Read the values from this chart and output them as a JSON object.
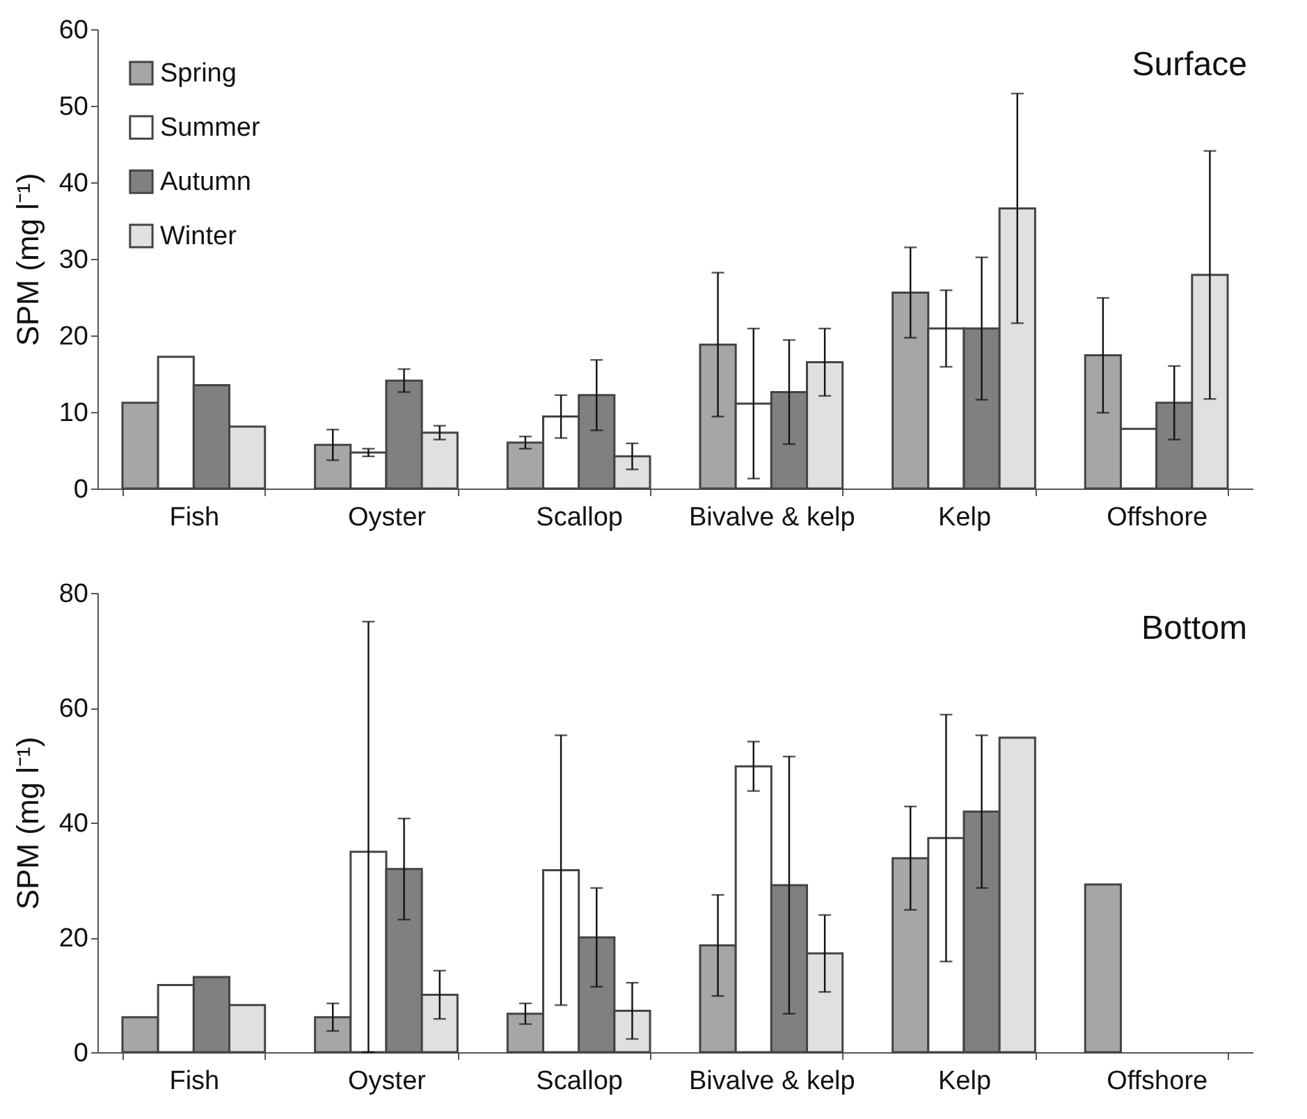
{
  "chart_data": [
    {
      "type": "bar",
      "title": "Surface",
      "ylabel": "SPM (mg l⁻¹)",
      "categories": [
        "Fish",
        "Oyster",
        "Scallop",
        "Bivalve & kelp",
        "Kelp",
        "Offshore"
      ],
      "ylim": [
        0,
        60
      ],
      "yticks": [
        0,
        10,
        20,
        30,
        40,
        50,
        60
      ],
      "grid": false,
      "legend": "top left",
      "series": [
        {
          "name": "Spring",
          "color": "#a6a6a6",
          "values": [
            11.2,
            5.7,
            6.0,
            18.8,
            25.6,
            17.4
          ],
          "errors": [
            null,
            2.0,
            0.8,
            9.4,
            5.9,
            7.5
          ]
        },
        {
          "name": "Summer",
          "color": "#ffffff",
          "values": [
            17.2,
            4.7,
            9.4,
            11.1,
            20.9,
            7.8
          ],
          "errors": [
            null,
            0.5,
            2.8,
            9.8,
            5.0,
            null
          ]
        },
        {
          "name": "Autumn",
          "color": "#808080",
          "values": [
            13.5,
            14.1,
            12.2,
            12.6,
            20.9,
            11.2
          ],
          "errors": [
            null,
            1.5,
            4.6,
            6.8,
            9.3,
            4.8
          ]
        },
        {
          "name": "Winter",
          "color": "#e0e0e0",
          "values": [
            8.1,
            7.3,
            4.2,
            16.5,
            36.6,
            27.9
          ],
          "errors": [
            null,
            0.9,
            1.7,
            4.4,
            15.0,
            16.2
          ]
        }
      ]
    },
    {
      "type": "bar",
      "title": "Bottom",
      "ylabel": "SPM (mg l⁻¹)",
      "categories": [
        "Fish",
        "Oyster",
        "Scallop",
        "Bivalve & kelp",
        "Kelp",
        "Offshore"
      ],
      "ylim": [
        0,
        80
      ],
      "yticks": [
        0,
        20,
        40,
        60,
        80
      ],
      "grid": false,
      "series": [
        {
          "color": "#a6a6a6",
          "values": [
            6.1,
            6.1,
            6.7,
            18.6,
            33.8,
            29.2
          ],
          "errors": [
            null,
            2.4,
            1.8,
            8.8,
            9.0,
            null
          ]
        },
        {
          "color": "#ffffff",
          "values": [
            11.7,
            34.9,
            31.7,
            49.8,
            37.3,
            null
          ],
          "errors": [
            null,
            [
              0,
              75.0
            ],
            23.5,
            4.3,
            21.5,
            null
          ]
        },
        {
          "color": "#808080",
          "values": [
            13.1,
            31.9,
            20.0,
            29.1,
            41.9,
            null
          ],
          "errors": [
            null,
            8.8,
            8.6,
            22.4,
            13.3,
            null
          ]
        },
        {
          "color": "#e0e0e0",
          "values": [
            8.2,
            10.0,
            7.2,
            17.2,
            54.8,
            null
          ],
          "errors": [
            null,
            4.2,
            4.9,
            6.7,
            null,
            null
          ]
        }
      ]
    }
  ]
}
